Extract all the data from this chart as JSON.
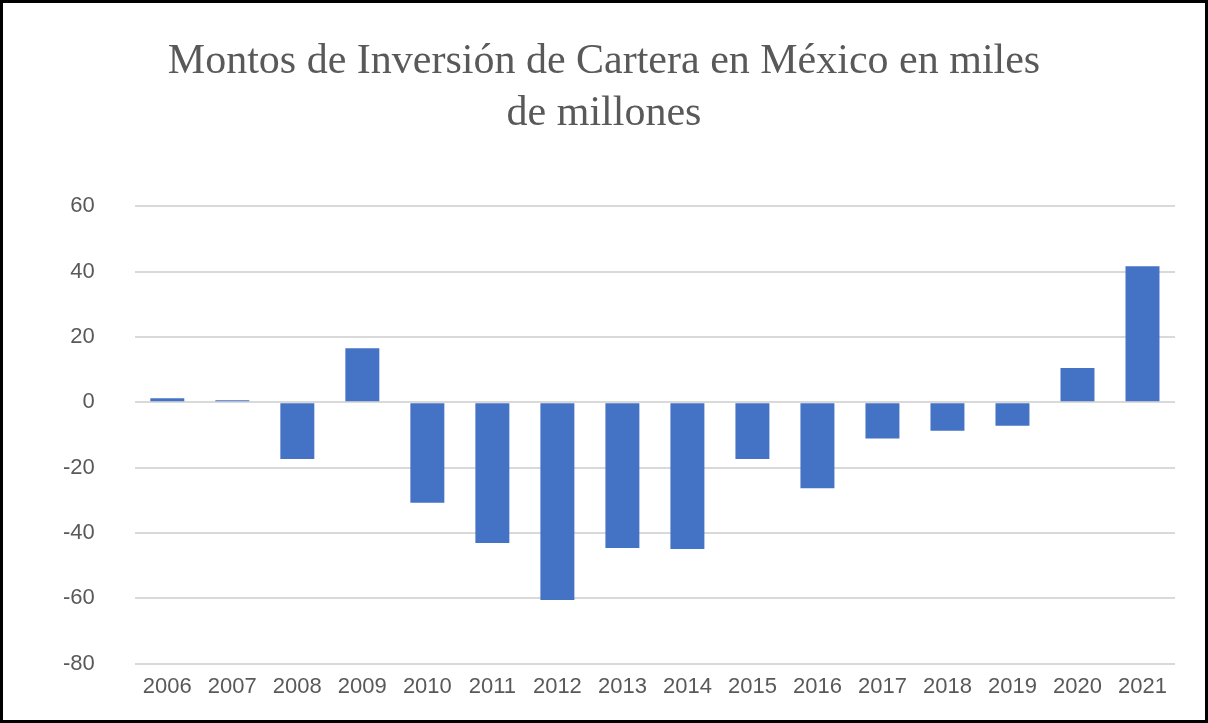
{
  "chart_data": {
    "type": "bar",
    "title": "Montos de Inversión de Cartera en México en miles de millones",
    "categories": [
      "2006",
      "2007",
      "2008",
      "2009",
      "2010",
      "2011",
      "2012",
      "2013",
      "2014",
      "2015",
      "2016",
      "2017",
      "2018",
      "2019",
      "2020",
      "2021"
    ],
    "values": [
      1.2,
      0.6,
      -17.4,
      16.5,
      -30.8,
      -43.1,
      -60.5,
      -44.6,
      -44.9,
      -17.4,
      -26.3,
      -11.1,
      -8.7,
      -7.2,
      10.5,
      41.6
    ],
    "color": "#4472c4",
    "ylim": [
      -80,
      60
    ],
    "yticks": [
      -80,
      -60,
      -40,
      -20,
      0,
      20,
      40,
      60
    ],
    "grid": "y",
    "legend": false
  }
}
